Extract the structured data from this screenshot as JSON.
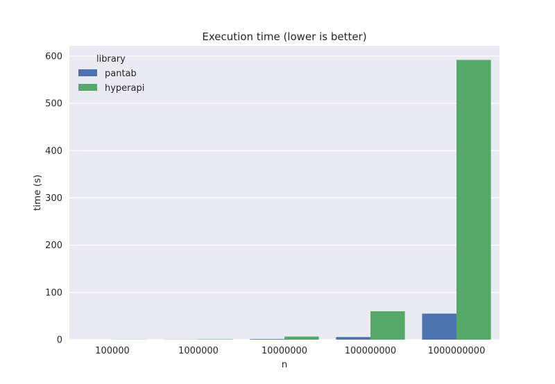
{
  "chart_data": {
    "type": "bar",
    "title": "Execution time (lower is better)",
    "xlabel": "n",
    "ylabel": "time (s)",
    "categories": [
      "100000",
      "1000000",
      "10000000",
      "100000000",
      "1000000000"
    ],
    "series": [
      {
        "name": "pantab",
        "values": [
          0.05,
          0.3,
          1.2,
          5.5,
          55
        ],
        "color": "#4c72b0"
      },
      {
        "name": "hyperapi",
        "values": [
          0.3,
          0.8,
          6.5,
          60,
          592
        ],
        "color": "#55a868"
      }
    ],
    "ylim": [
      0,
      622
    ],
    "yticks": [
      0,
      100,
      200,
      300,
      400,
      500,
      600
    ],
    "legend": {
      "title": "library",
      "position": "top-left"
    },
    "grid": true,
    "background": "#eaeaf2",
    "grid_color": "#ffffff"
  }
}
